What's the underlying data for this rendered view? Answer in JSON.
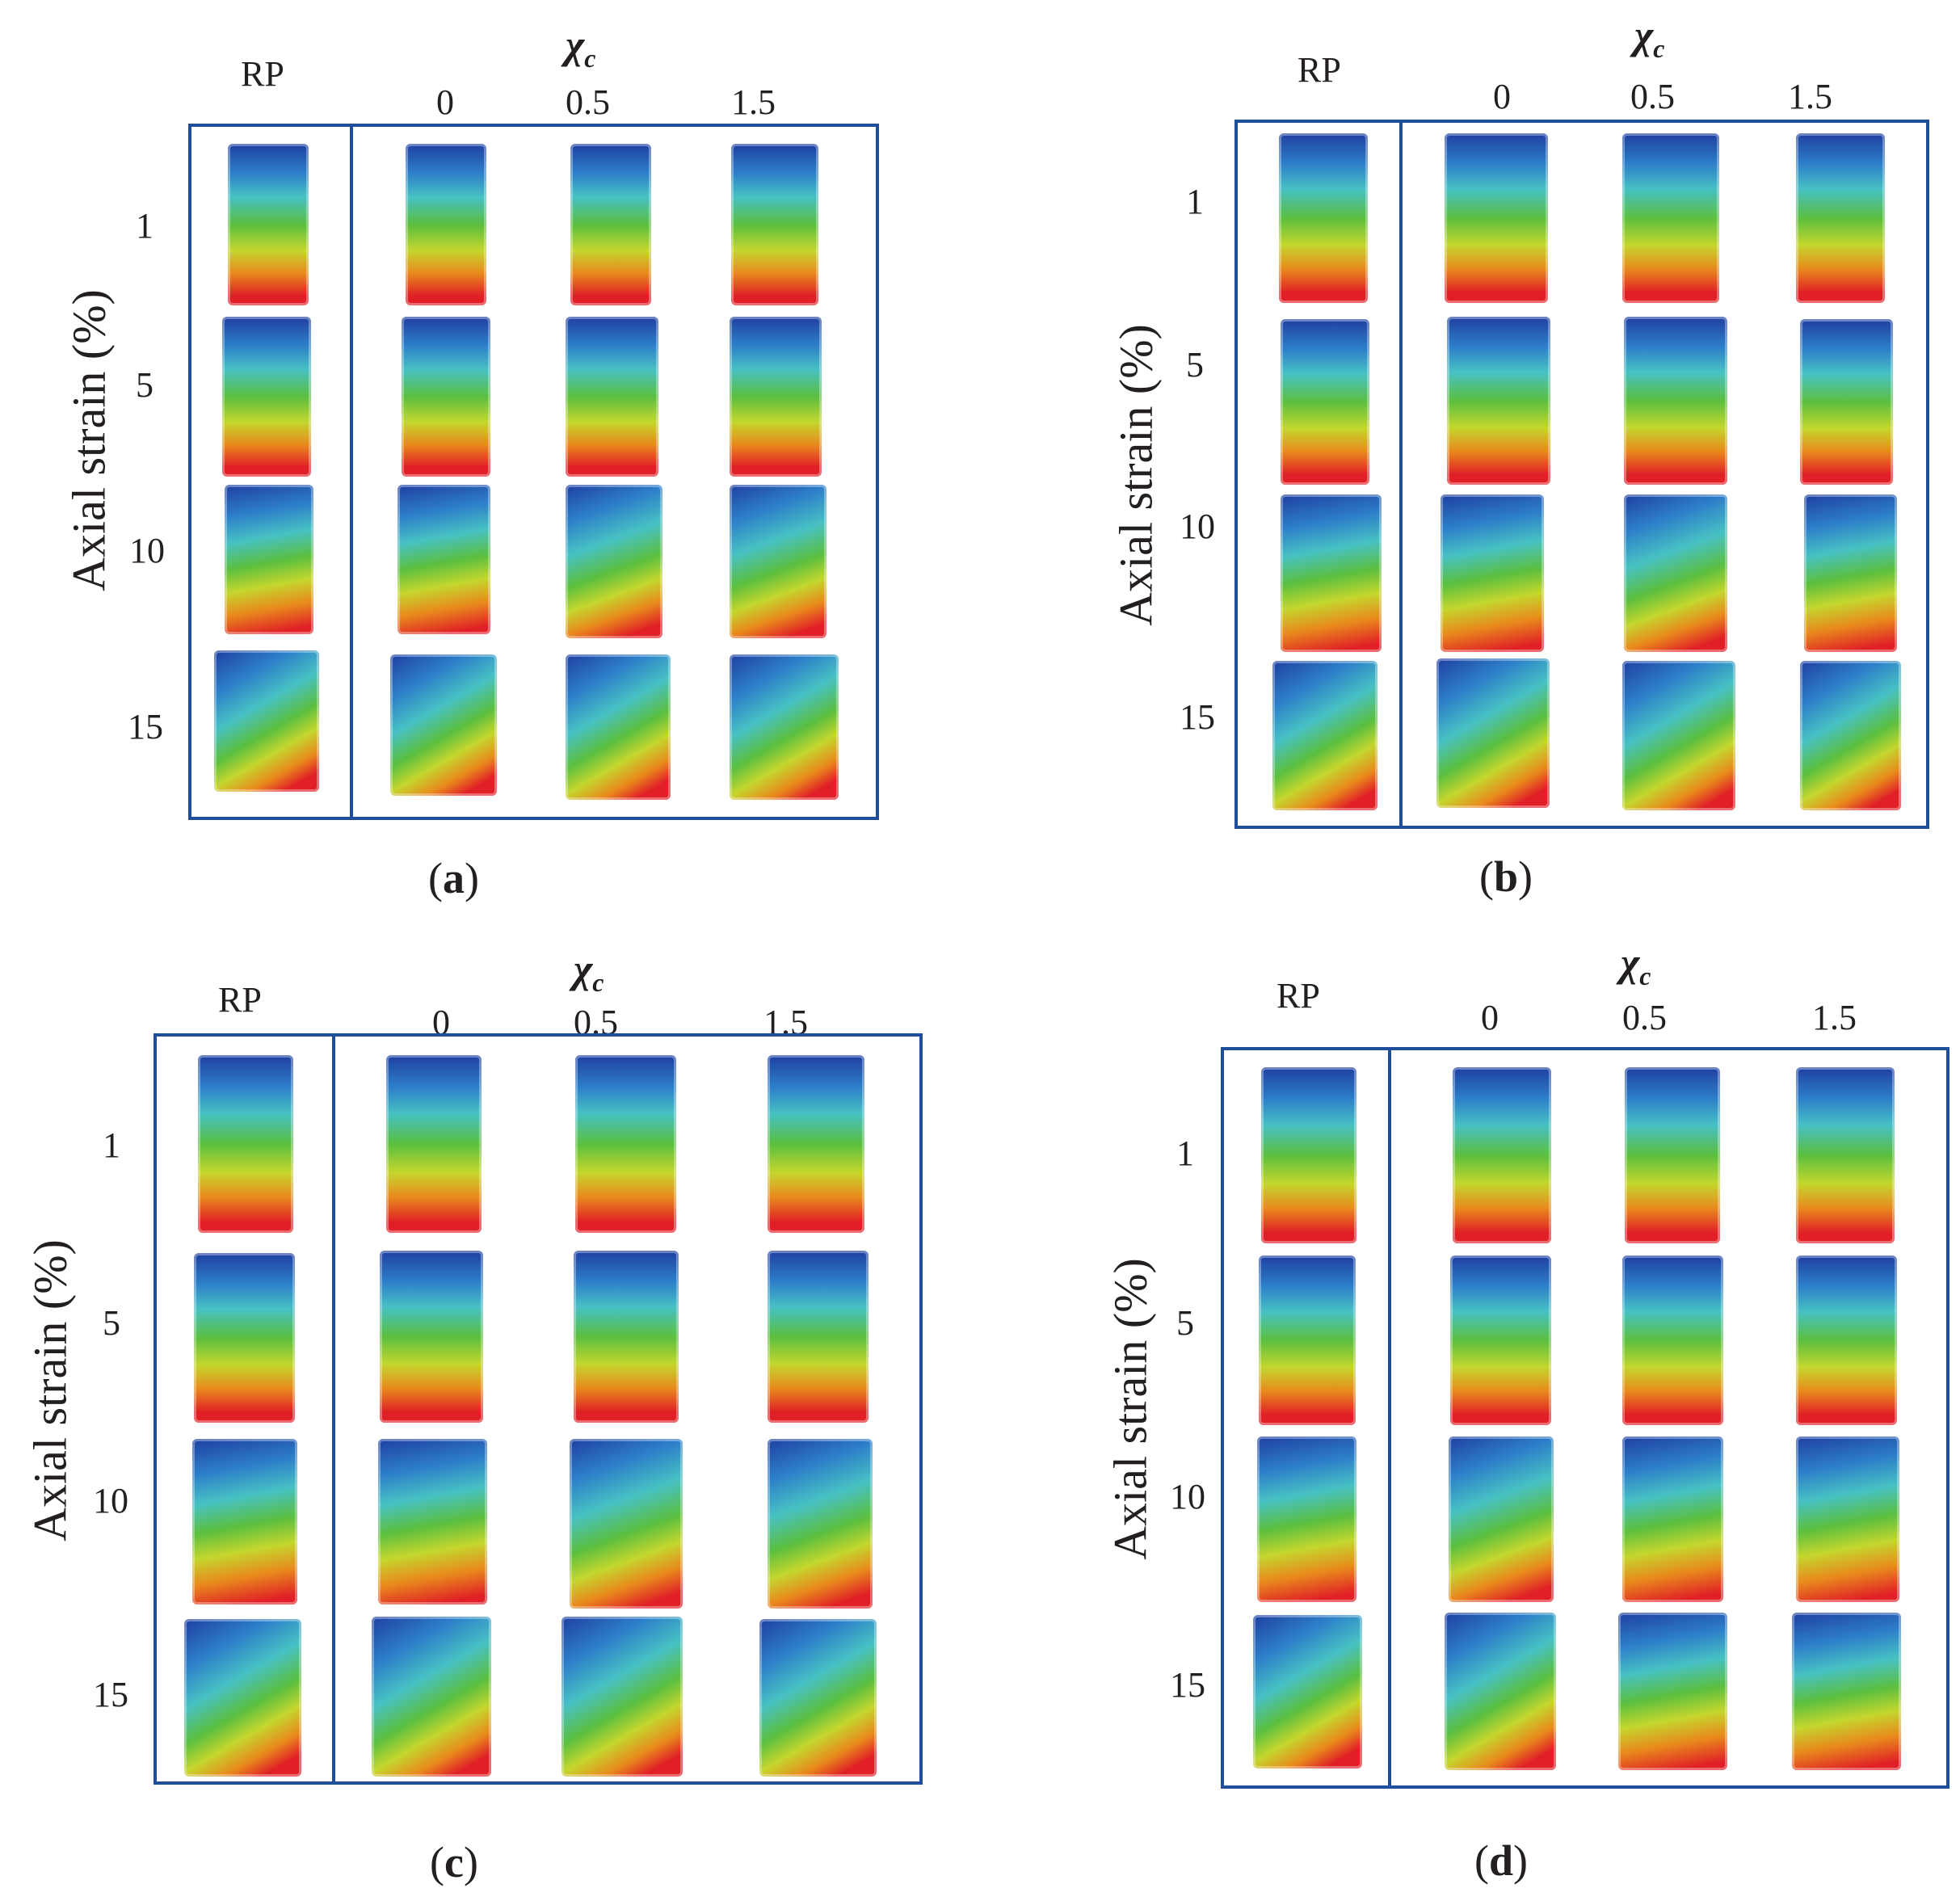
{
  "figure": {
    "rp_label": "RP",
    "chi_symbol": "χ",
    "chi_subscript": "c",
    "columns": [
      "0",
      "0.5",
      "1.5"
    ],
    "rows": [
      "1",
      "5",
      "10",
      "15"
    ],
    "ylabel": "Axial strain (%)",
    "colormap": [
      "#1f3fa0",
      "#2d7fc9",
      "#47c1c4",
      "#5bbf3f",
      "#c4d62e",
      "#e88a1c",
      "#e01f26"
    ]
  },
  "panels": [
    {
      "id": "a",
      "caption_open": "(",
      "caption_letter": "a",
      "caption_close": ")"
    },
    {
      "id": "b",
      "caption_open": "(",
      "caption_letter": "b",
      "caption_close": ")"
    },
    {
      "id": "c",
      "caption_open": "(",
      "caption_letter": "c",
      "caption_close": ")"
    },
    {
      "id": "d",
      "caption_open": "(",
      "caption_letter": "d",
      "caption_close": ")"
    }
  ]
}
